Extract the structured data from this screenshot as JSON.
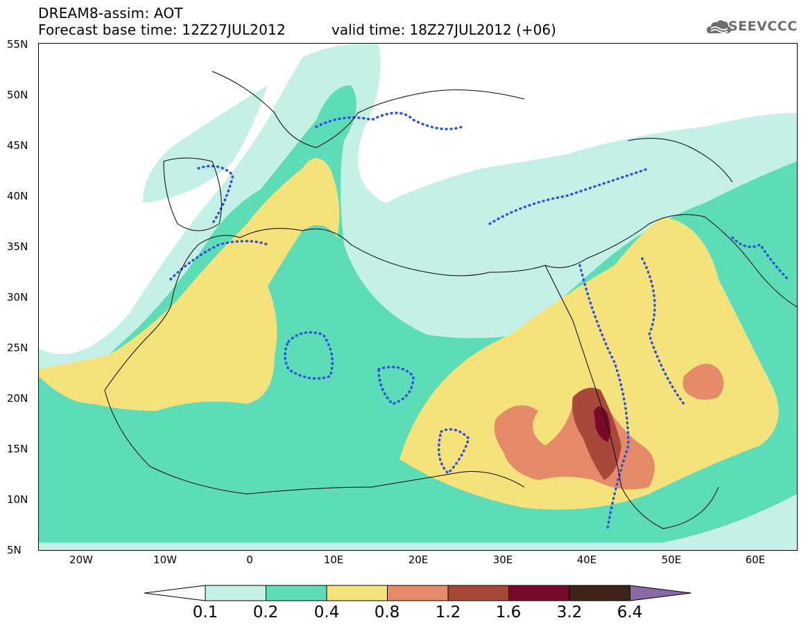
{
  "header": {
    "title": "DREAM8-assim: AOT",
    "base_time": "Forecast base time: 12Z27JUL2012",
    "valid_time": "valid time: 18Z27JUL2012 (+06)"
  },
  "logo": {
    "text": "SEEVCCC",
    "icon": "cloud-icon"
  },
  "axes": {
    "lat_ticks": [
      "55N",
      "50N",
      "45N",
      "40N",
      "35N",
      "30N",
      "25N",
      "20N",
      "15N",
      "10N",
      "5N"
    ],
    "lon_ticks": [
      "20W",
      "10W",
      "0",
      "10E",
      "20E",
      "30E",
      "40E",
      "50E",
      "60E"
    ]
  },
  "legend": {
    "levels": [
      "0.1",
      "0.2",
      "0.4",
      "0.8",
      "1.2",
      "1.6",
      "3.2",
      "6.4"
    ],
    "colors": [
      "#ffffff",
      "#c4f0e8",
      "#5ddcb8",
      "#f5e27a",
      "#e58b6a",
      "#a8483a",
      "#7a0a2a",
      "#3e2418",
      "#8a6aa8"
    ]
  },
  "map_colors": {
    "c01": "#c4f0e8",
    "c02": "#5ddcb8",
    "c04": "#f5e27a",
    "c08": "#e58b6a",
    "c12": "#a8483a",
    "c16": "#7a0a2a",
    "contour": "#2e52e0"
  }
}
